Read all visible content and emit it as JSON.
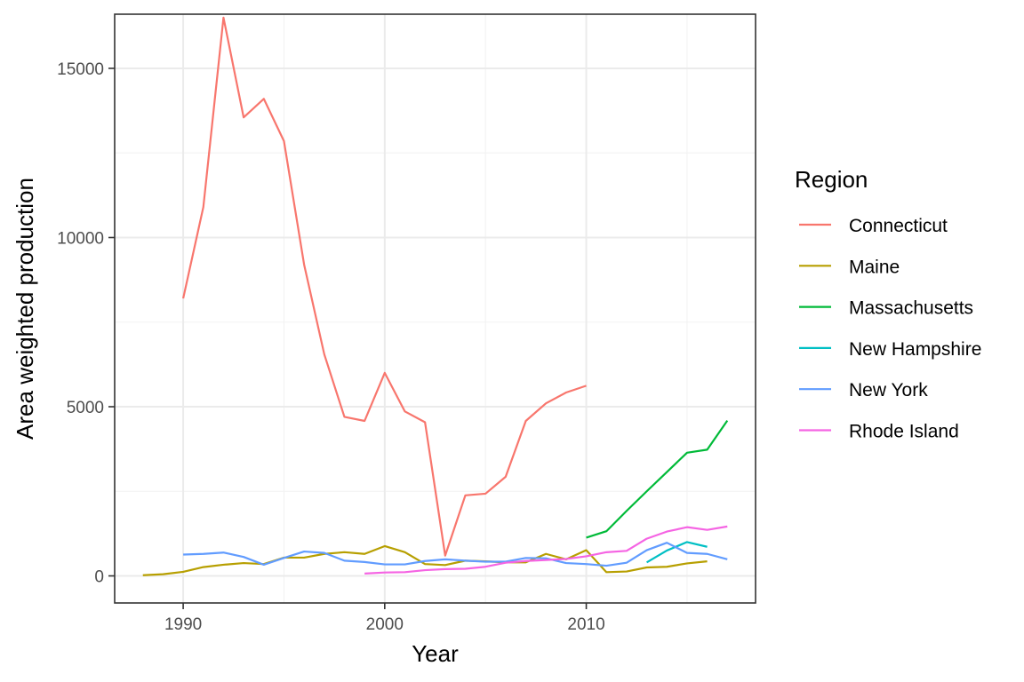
{
  "chart_data": {
    "type": "line",
    "title": "",
    "xlabel": "Year",
    "ylabel": "Area weighted production",
    "xlim": [
      1986.6,
      2018.4
    ],
    "ylim": [
      -800,
      16600
    ],
    "x_ticks": [
      1990,
      2000,
      2010
    ],
    "x_tick_labels": [
      "1990",
      "2000",
      "2010"
    ],
    "y_ticks": [
      0,
      5000,
      10000,
      15000
    ],
    "y_tick_labels": [
      "0",
      "5000",
      "10000",
      "15000"
    ],
    "grid": true,
    "legend": {
      "title": "Region",
      "position": "right"
    },
    "series": [
      {
        "name": "Connecticut",
        "color": "#F8766D",
        "x": [
          1990,
          1991,
          1992,
          1993,
          1994,
          1995,
          1996,
          1997,
          1998,
          1999,
          2000,
          2001,
          2002,
          2003,
          2004,
          2005,
          2006,
          2007,
          2008,
          2009,
          2010
        ],
        "y": [
          8200,
          10900,
          16500,
          13550,
          14100,
          12850,
          9200,
          6550,
          4700,
          4580,
          6000,
          4860,
          4540,
          600,
          2380,
          2430,
          2930,
          4580,
          5100,
          5420,
          5620
        ]
      },
      {
        "name": "Maine",
        "color": "#B79F00",
        "x": [
          1988,
          1989,
          1990,
          1991,
          1992,
          1993,
          1994,
          1995,
          1996,
          1997,
          1998,
          1999,
          2000,
          2001,
          2002,
          2003,
          2004,
          2005,
          2006,
          2007,
          2008,
          2009,
          2010,
          2011,
          2012,
          2013,
          2014,
          2015,
          2016
        ],
        "y": [
          20,
          50,
          120,
          260,
          330,
          380,
          350,
          540,
          540,
          650,
          700,
          650,
          880,
          700,
          350,
          320,
          450,
          430,
          400,
          400,
          650,
          490,
          760,
          110,
          130,
          250,
          270,
          370,
          430
        ]
      },
      {
        "name": "Massachusetts",
        "color": "#00BA38",
        "x": [
          2010,
          2011,
          2012,
          2013,
          2014,
          2015,
          2016,
          2017
        ],
        "y": [
          1130,
          1320,
          1920,
          2500,
          3070,
          3640,
          3730,
          4590
        ]
      },
      {
        "name": "New Hampshire",
        "color": "#00BFC4",
        "x": [
          2013,
          2014,
          2015,
          2016
        ],
        "y": [
          400,
          750,
          1000,
          860
        ]
      },
      {
        "name": "New York",
        "color": "#619CFF",
        "x": [
          1990,
          1991,
          1992,
          1993,
          1994,
          1995,
          1996,
          1997,
          1998,
          1999,
          2000,
          2001,
          2002,
          2003,
          2004,
          2005,
          2006,
          2007,
          2008,
          2009,
          2010,
          2011,
          2012,
          2013,
          2014,
          2015,
          2016,
          2017
        ],
        "y": [
          630,
          650,
          690,
          560,
          330,
          530,
          720,
          680,
          450,
          410,
          340,
          340,
          440,
          490,
          450,
          420,
          420,
          530,
          520,
          380,
          350,
          300,
          390,
          760,
          980,
          680,
          650,
          490
        ]
      },
      {
        "name": "Rhode Island",
        "color": "#F564E3",
        "x": [
          1999,
          2000,
          2001,
          2002,
          2003,
          2004,
          2005,
          2006,
          2007,
          2008,
          2009,
          2010,
          2011,
          2012,
          2013,
          2014,
          2015,
          2016,
          2017
        ],
        "y": [
          70,
          100,
          110,
          170,
          200,
          210,
          270,
          390,
          440,
          470,
          500,
          580,
          700,
          740,
          1100,
          1310,
          1440,
          1360,
          1460
        ]
      }
    ]
  }
}
